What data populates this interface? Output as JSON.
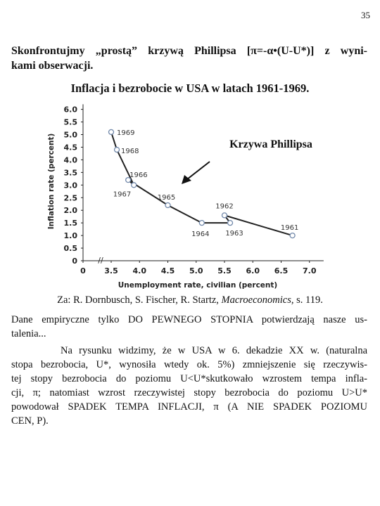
{
  "page_number": "35",
  "heading": {
    "lines": [
      "Skonfrontujmy „prostą” krzywą Phillipsa [π=-α•(U-U*)] z wyni-",
      "kami obserwacji."
    ]
  },
  "chart_data": {
    "type": "line",
    "title": "Inflacja i bezrobocie w USA w latach 1961-1969.",
    "x_label": "Unemployment rate, civilian (percent)",
    "y_label": "Inflation rate (percent)",
    "annotation": "Krzywa Phillipsa",
    "point_labels": [
      "1961",
      "1962",
      "1963",
      "1964",
      "1965",
      "1966",
      "1967",
      "1968",
      "1969"
    ],
    "x": [
      6.7,
      5.5,
      5.6,
      5.1,
      4.5,
      3.8,
      3.9,
      3.6,
      3.5
    ],
    "values": [
      1.0,
      1.8,
      1.5,
      1.5,
      2.2,
      3.2,
      3.0,
      4.4,
      5.1
    ],
    "color": "#222222",
    "marker_color": "#7188aa",
    "xlim": [
      3,
      7.25
    ],
    "xticks": [
      0,
      3.5,
      {
        "value": 4,
        "label": "4.0"
      },
      4.5,
      {
        "value": 5,
        "label": "5.0"
      },
      5.5,
      {
        "value": 6,
        "label": "6.0"
      },
      6.5,
      {
        "value": 7,
        "label": "7.0"
      }
    ],
    "ylim": [
      0,
      6.2
    ],
    "yticks": [
      0,
      0.5,
      {
        "value": 1,
        "label": "1.0"
      },
      1.5,
      {
        "value": 2,
        "label": "2.0"
      },
      2.5,
      {
        "value": 3,
        "label": "3.0"
      },
      3.5,
      {
        "value": 4,
        "label": "4.0"
      },
      4.5,
      {
        "value": 5,
        "label": "5.0"
      },
      5.5,
      {
        "value": 6,
        "label": "6.0"
      }
    ]
  },
  "source": {
    "prefix": "Za: R. Dornbusch, S. Fischer, R. Startz, ",
    "book": "Macroeconomics",
    "suffix": ", s. 119."
  },
  "paragraphs": [
    {
      "lines": [
        "Dane empiryczne tylko DO PEWNEGO STOPNIA potwierdzają nasze us-",
        "talenia..."
      ]
    },
    {
      "lines": [
        "Na rysunku widzimy, że w USA w 6. dekadzie XX w. (naturalna",
        "stopa bezrobocia, U*,  wynosiła wtedy ok. 5%) zmniejszenie się rzeczywis-",
        "tej stopy bezrobocia do poziomu U<U*skutkowało wzrostem tempa infla-",
        "cji, π; natomiast wzrost rzeczywistej stopy bezrobocia do poziomu U>U*",
        "powodował SPADEK TEMPA INFLACJI, π (A NIE SPADEK POZIOMU",
        "CEN, P)."
      ]
    }
  ]
}
